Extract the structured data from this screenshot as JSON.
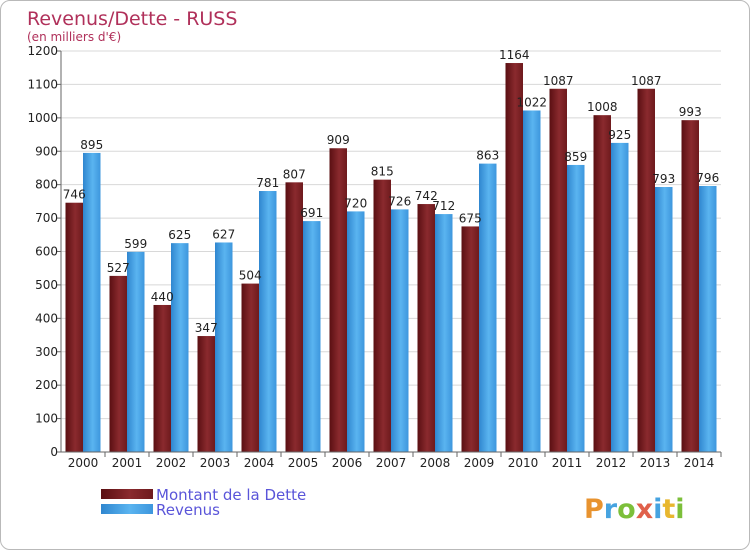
{
  "chart_data": {
    "type": "bar",
    "title": "Revenus/Dette - RUSS",
    "subtitle": "(en milliers d'€)",
    "categories": [
      "2000",
      "2001",
      "2002",
      "2003",
      "2004",
      "2005",
      "2006",
      "2007",
      "2008",
      "2009",
      "2010",
      "2011",
      "2012",
      "2013",
      "2014"
    ],
    "series": [
      {
        "name": "Montant de la Dette",
        "color": "#7a1f22",
        "values": [
          746,
          527,
          440,
          347,
          504,
          807,
          909,
          815,
          742,
          675,
          1164,
          1087,
          1008,
          1087,
          993
        ]
      },
      {
        "name": "Revenus",
        "color": "#4da6e8",
        "values": [
          895,
          599,
          625,
          627,
          781,
          691,
          720,
          726,
          712,
          863,
          1022,
          859,
          925,
          793,
          796
        ]
      }
    ],
    "ylim": [
      0,
      1200
    ],
    "yticks": [
      0,
      100,
      200,
      300,
      400,
      500,
      600,
      700,
      800,
      900,
      1000,
      1100,
      1200
    ],
    "grid": true,
    "legend_position": "bottom-left"
  },
  "logo": {
    "letters": [
      "P",
      "r",
      "o",
      "x",
      "i",
      "t",
      "i"
    ]
  }
}
